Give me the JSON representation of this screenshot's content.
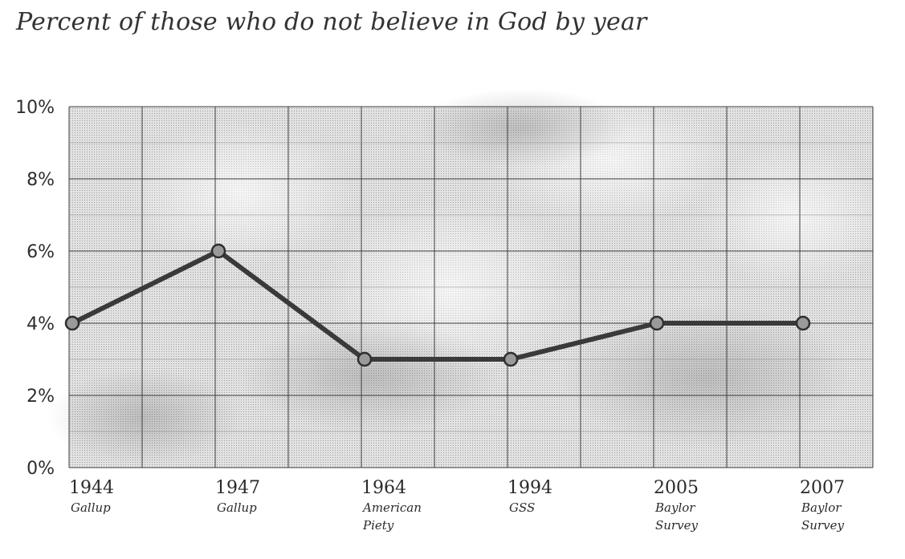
{
  "chart_data": {
    "type": "line",
    "title": "Percent of those who do not believe in God by year",
    "xlabel": "",
    "ylabel": "",
    "ylim": [
      0,
      10
    ],
    "yticks": [
      "0%",
      "2%",
      "4%",
      "6%",
      "8%",
      "10%"
    ],
    "grid": true,
    "legend": "none",
    "categories": [
      {
        "year": "1944",
        "source": [
          "Gallup"
        ]
      },
      {
        "year": "1947",
        "source": [
          "Gallup"
        ]
      },
      {
        "year": "1964",
        "source": [
          "American",
          "Piety"
        ]
      },
      {
        "year": "1994",
        "source": [
          "GSS"
        ]
      },
      {
        "year": "2005",
        "source": [
          "Baylor",
          "Survey"
        ]
      },
      {
        "year": "2007",
        "source": [
          "Baylor",
          "Survey"
        ]
      }
    ],
    "series": [
      {
        "values": [
          4,
          6,
          3,
          3,
          4,
          4
        ]
      }
    ],
    "colors": {
      "line": "#3a3a3a",
      "marker_fill": "#9a9a9a",
      "plot_bg": "#d4d4d4",
      "grid": "#3c3c3c"
    }
  }
}
